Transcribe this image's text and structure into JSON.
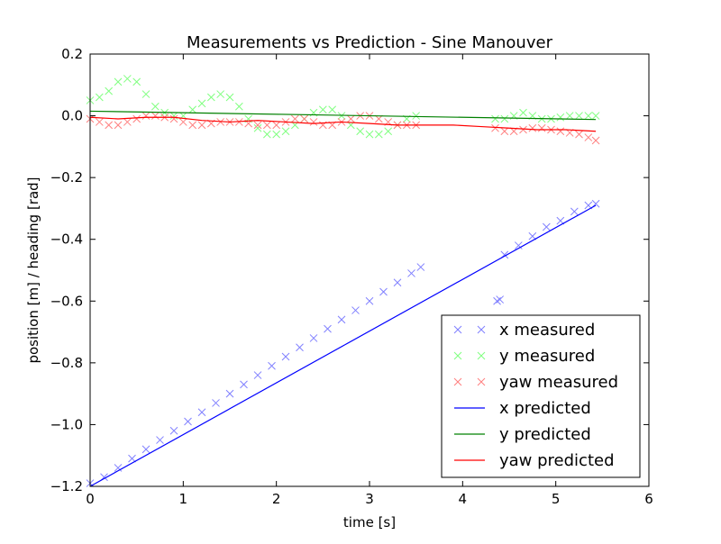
{
  "chart_data": {
    "type": "line",
    "title": "Measurements vs Prediction - Sine Manouver",
    "xlabel": "time [s]",
    "ylabel": "position [m] / heading [rad]",
    "xlim": [
      0,
      6
    ],
    "ylim": [
      -1.2,
      0.2
    ],
    "xticks": [
      0,
      1,
      2,
      3,
      4,
      5,
      6
    ],
    "xtick_labels": [
      "0",
      "1",
      "2",
      "3",
      "4",
      "5",
      "6"
    ],
    "yticks": [
      -1.2,
      -1.0,
      -0.8,
      -0.6,
      -0.4,
      -0.2,
      0.0,
      0.2
    ],
    "ytick_labels": [
      "−1.2",
      "−1.0",
      "−0.8",
      "−0.6",
      "−0.4",
      "−0.2",
      "0.0",
      "0.2"
    ],
    "grid": false,
    "legend_position": "lower-right",
    "series": [
      {
        "name": "x measured",
        "kind": "scatter",
        "marker": "x",
        "color": "#8080ff",
        "x": [
          0.0,
          0.15,
          0.3,
          0.45,
          0.6,
          0.75,
          0.9,
          1.05,
          1.2,
          1.35,
          1.5,
          1.65,
          1.8,
          1.95,
          2.1,
          2.25,
          2.4,
          2.55,
          2.7,
          2.85,
          3.0,
          3.15,
          3.3,
          3.45,
          3.55,
          4.37,
          4.4,
          4.45,
          4.6,
          4.75,
          4.9,
          5.05,
          5.2,
          5.35,
          5.43
        ],
        "y": [
          -1.19,
          -1.17,
          -1.14,
          -1.11,
          -1.08,
          -1.05,
          -1.02,
          -0.99,
          -0.96,
          -0.93,
          -0.9,
          -0.87,
          -0.84,
          -0.81,
          -0.78,
          -0.75,
          -0.72,
          -0.69,
          -0.66,
          -0.63,
          -0.6,
          -0.57,
          -0.54,
          -0.51,
          -0.49,
          -0.6,
          -0.595,
          -0.45,
          -0.42,
          -0.39,
          -0.36,
          -0.34,
          -0.31,
          -0.29,
          -0.285
        ]
      },
      {
        "name": "y measured",
        "kind": "scatter",
        "marker": "x",
        "color": "#80ff80",
        "x": [
          0.0,
          0.1,
          0.2,
          0.3,
          0.4,
          0.5,
          0.6,
          0.7,
          0.8,
          0.9,
          1.0,
          1.1,
          1.2,
          1.3,
          1.4,
          1.5,
          1.6,
          1.7,
          1.8,
          1.9,
          2.0,
          2.1,
          2.2,
          2.3,
          2.4,
          2.5,
          2.6,
          2.7,
          2.8,
          2.9,
          3.0,
          3.1,
          3.2,
          3.3,
          3.4,
          3.5,
          4.35,
          4.45,
          4.55,
          4.65,
          4.75,
          4.85,
          4.95,
          5.05,
          5.15,
          5.25,
          5.35,
          5.43
        ],
        "y": [
          0.05,
          0.06,
          0.08,
          0.11,
          0.12,
          0.11,
          0.07,
          0.03,
          0.01,
          0.0,
          0.0,
          0.02,
          0.04,
          0.06,
          0.07,
          0.06,
          0.03,
          -0.01,
          -0.04,
          -0.06,
          -0.06,
          -0.05,
          -0.03,
          -0.01,
          0.01,
          0.02,
          0.02,
          0.0,
          -0.03,
          -0.05,
          -0.06,
          -0.06,
          -0.05,
          -0.03,
          -0.01,
          0.0,
          -0.01,
          -0.01,
          0.0,
          0.01,
          0.0,
          -0.01,
          -0.01,
          -0.005,
          0.0,
          0.0,
          0.0,
          0.0
        ]
      },
      {
        "name": "yaw measured",
        "kind": "scatter",
        "marker": "x",
        "color": "#ff8080",
        "x": [
          0.0,
          0.1,
          0.2,
          0.3,
          0.4,
          0.5,
          0.6,
          0.7,
          0.8,
          0.9,
          1.0,
          1.1,
          1.2,
          1.3,
          1.4,
          1.5,
          1.6,
          1.7,
          1.8,
          1.9,
          2.0,
          2.1,
          2.2,
          2.3,
          2.4,
          2.5,
          2.6,
          2.7,
          2.8,
          2.9,
          3.0,
          3.1,
          3.2,
          3.3,
          3.4,
          3.5,
          4.35,
          4.45,
          4.55,
          4.65,
          4.75,
          4.85,
          4.95,
          5.05,
          5.15,
          5.25,
          5.35,
          5.43
        ],
        "y": [
          -0.01,
          -0.02,
          -0.03,
          -0.03,
          -0.02,
          -0.01,
          0.0,
          0.0,
          -0.005,
          -0.01,
          -0.02,
          -0.03,
          -0.03,
          -0.025,
          -0.02,
          -0.02,
          -0.02,
          -0.025,
          -0.03,
          -0.03,
          -0.03,
          -0.02,
          -0.01,
          -0.01,
          -0.02,
          -0.03,
          -0.03,
          -0.02,
          -0.01,
          0.0,
          0.0,
          -0.01,
          -0.02,
          -0.03,
          -0.03,
          -0.03,
          -0.04,
          -0.05,
          -0.05,
          -0.045,
          -0.04,
          -0.04,
          -0.045,
          -0.05,
          -0.055,
          -0.06,
          -0.07,
          -0.08
        ]
      },
      {
        "name": "x predicted",
        "kind": "line",
        "color": "#0000ff",
        "x": [
          0.0,
          5.43
        ],
        "y": [
          -1.2,
          -0.29
        ]
      },
      {
        "name": "y predicted",
        "kind": "line",
        "color": "#008000",
        "x": [
          0.0,
          5.43
        ],
        "y": [
          0.015,
          -0.012
        ]
      },
      {
        "name": "yaw predicted",
        "kind": "line",
        "color": "#ff0000",
        "x": [
          0.0,
          0.3,
          0.6,
          0.9,
          1.2,
          1.5,
          1.8,
          2.1,
          2.4,
          2.7,
          3.0,
          3.3,
          3.6,
          3.9,
          4.2,
          4.5,
          4.8,
          5.1,
          5.43
        ],
        "y": [
          -0.005,
          -0.01,
          -0.005,
          -0.005,
          -0.015,
          -0.02,
          -0.015,
          -0.02,
          -0.025,
          -0.02,
          -0.025,
          -0.03,
          -0.03,
          -0.03,
          -0.035,
          -0.04,
          -0.045,
          -0.045,
          -0.05
        ]
      }
    ]
  }
}
